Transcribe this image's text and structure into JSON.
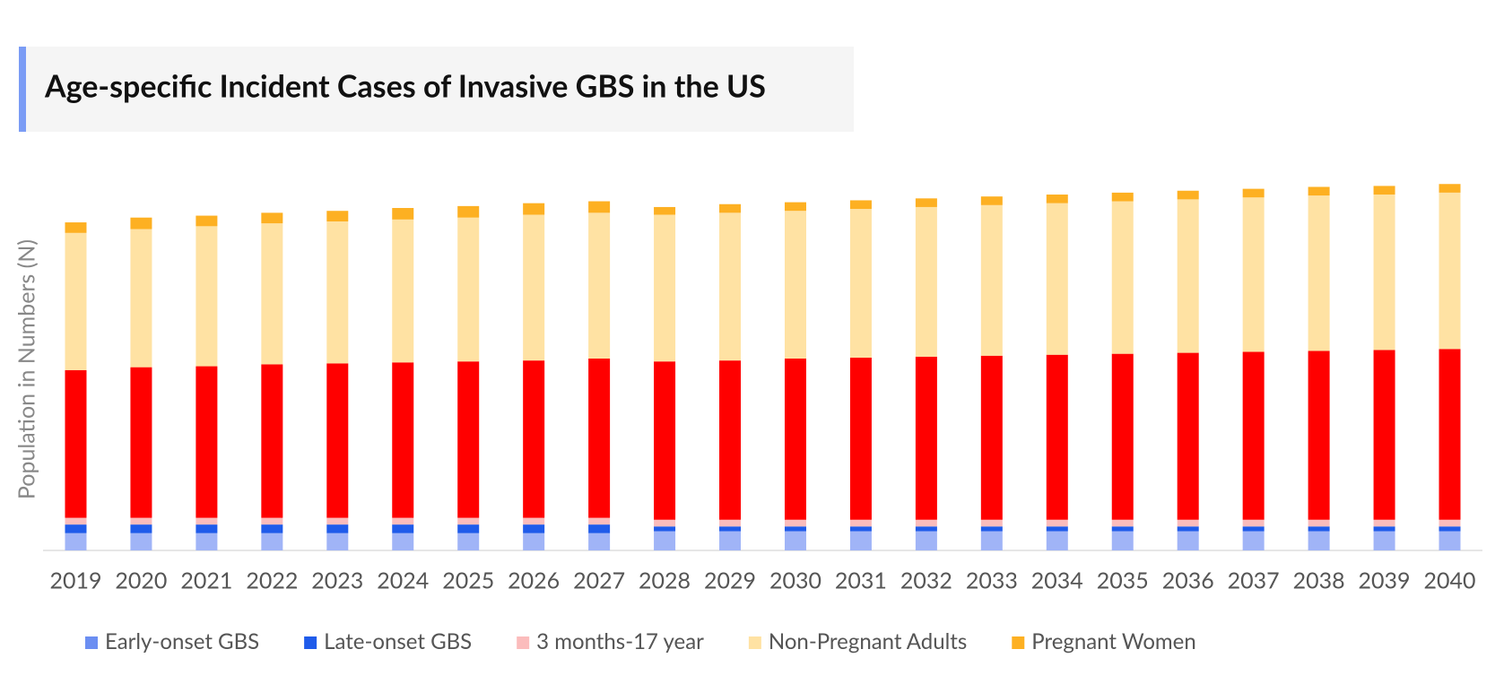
{
  "chart_data": {
    "type": "stacked-bar",
    "title": "Age-specific Incident Cases of Invasive GBS in the US",
    "y_label": "Population in Numbers (N)",
    "categories": [
      "2019",
      "2020",
      "2021",
      "2022",
      "2023",
      "2024",
      "2025",
      "2026",
      "2027",
      "2028",
      "2029",
      "2030",
      "2031",
      "2032",
      "2033",
      "2034",
      "2035",
      "2036",
      "2037",
      "2038",
      "2039",
      "2040"
    ],
    "ylim": [
      0,
      400
    ],
    "series": [
      {
        "name": "Early-onset GBS",
        "color": "#a0b4f7",
        "values": [
          18,
          18,
          18,
          18,
          18,
          18,
          18,
          18,
          18,
          20,
          20,
          20,
          20,
          20,
          20,
          20,
          20,
          20,
          20,
          20,
          20,
          20
        ]
      },
      {
        "name": "Late-onset GBS",
        "color": "#1f5bea",
        "values": [
          9,
          9,
          9,
          9,
          9,
          9,
          9,
          9,
          9,
          5,
          5,
          5,
          5,
          5,
          5,
          5,
          5,
          5,
          5,
          5,
          5,
          5
        ]
      },
      {
        "name": "3 months-17 year",
        "color": "#fbbcbc",
        "values": [
          7,
          7,
          7,
          7,
          7,
          7,
          7,
          7,
          7,
          7,
          7,
          7,
          7,
          7,
          7,
          7,
          7,
          7,
          7,
          7,
          7,
          7
        ]
      },
      {
        "color": "#ff0000",
        "values": [
          154,
          157,
          158,
          160,
          161,
          162,
          163,
          164,
          166,
          165,
          166,
          168,
          169,
          170,
          171,
          172,
          173,
          174,
          175,
          176,
          177,
          178
        ]
      },
      {
        "name": "Non-Pregnant Adults",
        "color": "#ffe2a3",
        "values": [
          143,
          144,
          146,
          147,
          148,
          149,
          150,
          152,
          152,
          153,
          154,
          154,
          155,
          156,
          157,
          158,
          159,
          160,
          161,
          162,
          162,
          163
        ]
      },
      {
        "name": "Pregnant Women",
        "color": "#fdb022",
        "values": [
          11,
          12,
          11,
          11,
          11,
          12,
          12,
          12,
          12,
          8,
          9,
          9,
          9,
          9,
          9,
          9,
          9,
          9,
          9,
          9,
          9,
          9
        ]
      }
    ],
    "legend_marker_colors": [
      "#6b8ef2",
      "#1f5bea",
      "#fbbcbc",
      "#ffe2a3",
      "#fdb022"
    ]
  }
}
